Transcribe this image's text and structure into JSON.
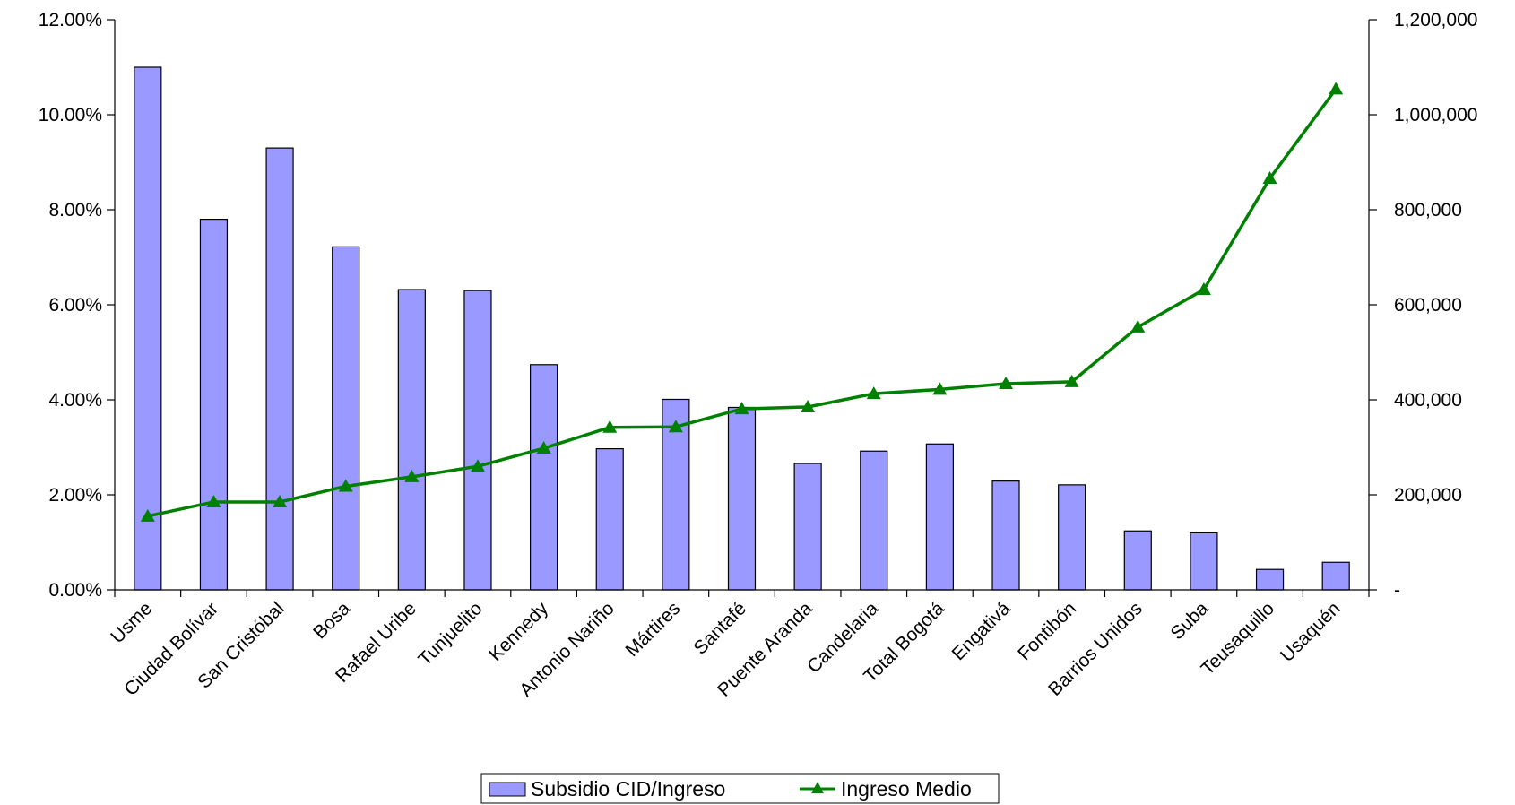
{
  "chart_data": {
    "type": "bar",
    "categories": [
      "Usme",
      "Ciudad Bolívar",
      "San Cristóbal",
      "Bosa",
      "Rafael Uribe",
      "Tunjuelito",
      "Kennedy",
      "Antonio Nariño",
      "Mártires",
      "Santafé",
      "Puente Aranda",
      "Candelaria",
      "Total Bogotá",
      "Engativá",
      "Fontibón",
      "Barrios Unidos",
      "Suba",
      "Teusaquillo",
      "Usaquén"
    ],
    "series": [
      {
        "name": "Subsidio CID/Ingreso",
        "type": "bar",
        "axis": "left",
        "color": "#9999ff",
        "values": [
          11.0,
          7.8,
          9.3,
          7.22,
          6.32,
          6.3,
          4.74,
          2.97,
          4.01,
          3.84,
          2.66,
          2.92,
          3.07,
          2.29,
          2.21,
          1.24,
          1.2,
          0.43,
          0.58
        ]
      },
      {
        "name": "Ingreso Medio",
        "type": "line",
        "axis": "right",
        "color": "#008000",
        "marker": "triangle",
        "values": [
          155000,
          185000,
          185000,
          218000,
          238000,
          260000,
          298000,
          342000,
          343000,
          381000,
          385000,
          413000,
          422000,
          434000,
          438000,
          553000,
          632000,
          866000,
          1054000
        ]
      }
    ],
    "y_left": {
      "ylim": [
        0,
        12
      ],
      "ticks": [
        0,
        2,
        4,
        6,
        8,
        10,
        12
      ],
      "tick_labels": [
        "0.00%",
        "2.00%",
        "4.00%",
        "6.00%",
        "8.00%",
        "10.00%",
        "12.00%"
      ]
    },
    "y_right": {
      "ylim": [
        0,
        1200000
      ],
      "ticks": [
        0,
        200000,
        400000,
        600000,
        800000,
        1000000,
        1200000
      ],
      "tick_labels": [
        "-",
        "200,000",
        "400,000",
        "600,000",
        "800,000",
        "1,000,000",
        "1,200,000"
      ]
    },
    "title": "",
    "xlabel": "",
    "ylabel": "",
    "grid": false,
    "legend_position": "bottom-center"
  }
}
